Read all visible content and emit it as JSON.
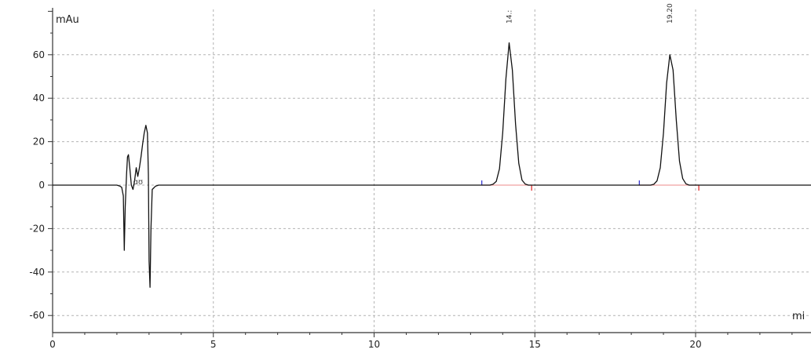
{
  "chart_data": {
    "type": "line",
    "ylabel": "mAu",
    "xlabel": "mi",
    "xlim": [
      0,
      23.7
    ],
    "ylim": [
      -68,
      82
    ],
    "x_ticks": [
      0,
      5,
      10,
      15,
      20
    ],
    "x_tick_labels": [
      "0",
      "5",
      "10",
      "15",
      "20"
    ],
    "y_ticks": [
      -60,
      -40,
      -20,
      0,
      20,
      40,
      60
    ],
    "y_tick_labels": [
      "-60",
      "-40",
      "-20",
      "0",
      "20",
      "40",
      "60"
    ],
    "grid": true,
    "series": [
      {
        "points": [
          [
            0,
            0
          ],
          [
            2.0,
            0
          ],
          [
            2.1,
            -0.5
          ],
          [
            2.15,
            -1
          ],
          [
            2.2,
            -5
          ],
          [
            2.23,
            -30
          ],
          [
            2.26,
            -10
          ],
          [
            2.3,
            5
          ],
          [
            2.33,
            13
          ],
          [
            2.36,
            14
          ],
          [
            2.4,
            8
          ],
          [
            2.45,
            0
          ],
          [
            2.5,
            -2
          ],
          [
            2.55,
            2
          ],
          [
            2.6,
            8
          ],
          [
            2.65,
            4
          ],
          [
            2.7,
            8
          ],
          [
            2.75,
            13
          ],
          [
            2.8,
            19
          ],
          [
            2.85,
            24
          ],
          [
            2.9,
            27.5
          ],
          [
            2.95,
            24
          ],
          [
            2.98,
            5
          ],
          [
            3.0,
            -35
          ],
          [
            3.03,
            -47
          ],
          [
            3.06,
            -20
          ],
          [
            3.1,
            -2
          ],
          [
            3.2,
            -0.5
          ],
          [
            3.3,
            0
          ],
          [
            13.6,
            0
          ],
          [
            13.7,
            0.4
          ],
          [
            13.8,
            1.7
          ],
          [
            13.9,
            7.5
          ],
          [
            14.0,
            24
          ],
          [
            14.1,
            49
          ],
          [
            14.2,
            65.5
          ],
          [
            14.3,
            53
          ],
          [
            14.4,
            28
          ],
          [
            14.5,
            10
          ],
          [
            14.6,
            2.3
          ],
          [
            14.7,
            0.5
          ],
          [
            14.8,
            0
          ],
          [
            18.6,
            0
          ],
          [
            18.7,
            0.4
          ],
          [
            18.8,
            2
          ],
          [
            18.9,
            8
          ],
          [
            19.0,
            24
          ],
          [
            19.1,
            47
          ],
          [
            19.2,
            60
          ],
          [
            19.3,
            53
          ],
          [
            19.4,
            30
          ],
          [
            19.5,
            11
          ],
          [
            19.6,
            3
          ],
          [
            19.7,
            0.6
          ],
          [
            19.8,
            0
          ],
          [
            23.7,
            0
          ]
        ]
      }
    ],
    "baseline_segments": [
      [
        13.35,
        14.9
      ],
      [
        18.25,
        20.1
      ]
    ],
    "baseline_start_markers": [
      13.35,
      18.25
    ],
    "baseline_end_markers": [
      14.9,
      20.1
    ],
    "peak_labels": [
      {
        "x": 14.2,
        "text": "14.:"
      },
      {
        "x": 19.2,
        "text": "19.20"
      }
    ],
    "stray_labels": [
      {
        "x": 2.65,
        "y": 1,
        "text": "ɑʊ"
      }
    ],
    "colors": {
      "trace": "#111111",
      "grid": "#b4b4b4",
      "baseline": "#f0a0a0",
      "start_marker": "#3a3ad0",
      "end_marker": "#e03030"
    }
  }
}
